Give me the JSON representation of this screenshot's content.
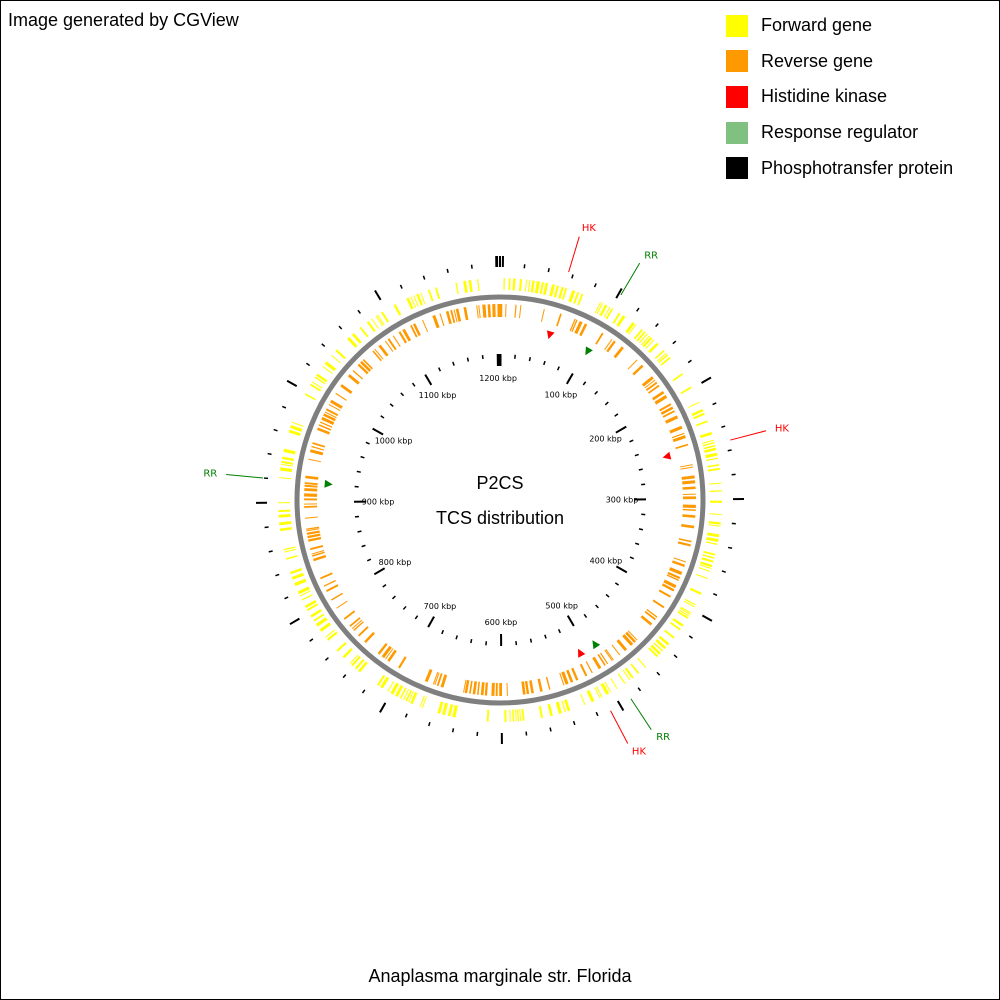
{
  "header": {
    "credit": "Image generated by CGView"
  },
  "legend": {
    "items": [
      {
        "label": "Forward gene",
        "color": "#ffff00"
      },
      {
        "label": "Reverse gene",
        "color": "#ff9900"
      },
      {
        "label": "Histidine kinase",
        "color": "#ff0000"
      },
      {
        "label": "Response regulator",
        "color": "#80c080"
      },
      {
        "label": "Phosphotransfer protein",
        "color": "#000000"
      }
    ]
  },
  "map": {
    "title": "P2CS",
    "subtitle": "TCS distribution",
    "genome_length_kbp": 1203,
    "backbone_color": "#7f7f7f",
    "hk_color": "#ff0000",
    "rr_color": "#008000",
    "scale_labels": [
      "100 kbp",
      "200 kbp",
      "300 kbp",
      "400 kbp",
      "500 kbp",
      "600 kbp",
      "700 kbp",
      "800 kbp",
      "900 kbp",
      "1000 kbp",
      "1100 kbp",
      "1200 kbp"
    ],
    "features": [
      {
        "label": "HK",
        "type": "hk",
        "position_kbp": 56
      },
      {
        "label": "RR",
        "type": "rr",
        "position_kbp": 102
      },
      {
        "label": "HK",
        "type": "hk",
        "position_kbp": 252
      },
      {
        "label": "RR",
        "type": "rr",
        "position_kbp": 490
      },
      {
        "label": "HK",
        "type": "hk",
        "position_kbp": 509
      },
      {
        "label": "RR",
        "type": "rr",
        "position_kbp": 920
      }
    ]
  },
  "footer": {
    "organism": "Anaplasma marginale str. Florida"
  }
}
